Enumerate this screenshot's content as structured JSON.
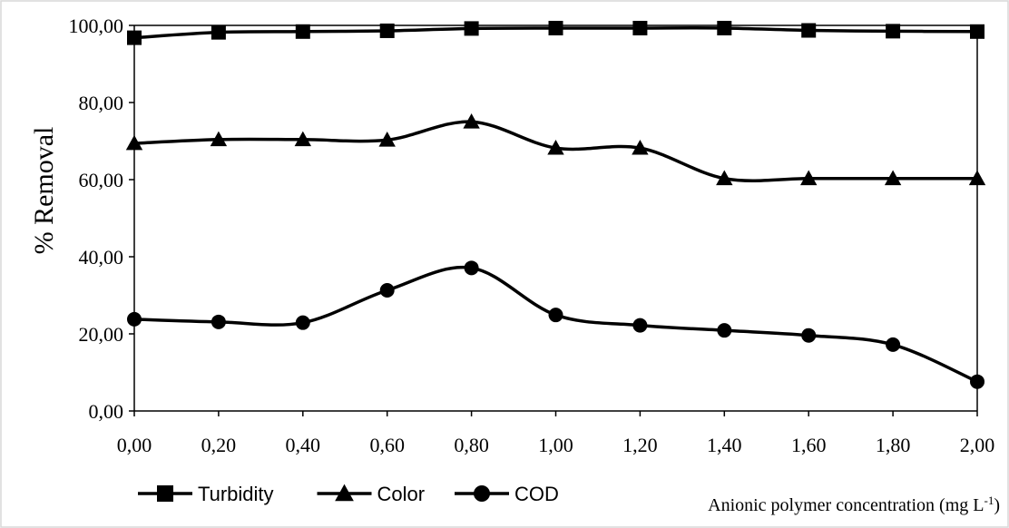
{
  "chart_data": {
    "type": "line",
    "title": "",
    "ylabel": "% Removal",
    "xlabel": {
      "base": "Anionic polymer concentration (mg L",
      "sup": "-1",
      "close": ")"
    },
    "x": [
      0.0,
      0.2,
      0.4,
      0.6,
      0.8,
      1.0,
      1.2,
      1.4,
      1.6,
      1.8,
      2.0
    ],
    "x_tick_labels": [
      "0,00",
      "0,20",
      "0,40",
      "0,60",
      "0,80",
      "1,00",
      "1,20",
      "1,40",
      "1,60",
      "1,80",
      "2,00"
    ],
    "xlim": [
      0,
      2
    ],
    "ylim": [
      0,
      100
    ],
    "y_ticks": [
      0,
      20,
      40,
      60,
      80,
      100
    ],
    "y_tick_labels": [
      "0,00",
      "20,00",
      "40,00",
      "60,00",
      "80,00",
      "100,00"
    ],
    "grid": false,
    "legend_position": "bottom-left",
    "series": [
      {
        "name": "Turbidity",
        "marker": "square",
        "color": "#000000",
        "values": [
          96.8,
          98.2,
          98.4,
          98.6,
          99.2,
          99.3,
          99.3,
          99.3,
          98.7,
          98.5,
          98.4
        ]
      },
      {
        "name": "Color",
        "marker": "triangle",
        "color": "#000000",
        "values": [
          69.4,
          70.4,
          70.4,
          70.3,
          75.0,
          68.2,
          68.2,
          60.3,
          60.3,
          60.3,
          60.3
        ]
      },
      {
        "name": "COD",
        "marker": "circle",
        "color": "#000000",
        "values": [
          23.8,
          23.1,
          22.9,
          31.3,
          37.1,
          24.9,
          22.2,
          20.9,
          19.6,
          17.2,
          7.6
        ]
      }
    ]
  }
}
